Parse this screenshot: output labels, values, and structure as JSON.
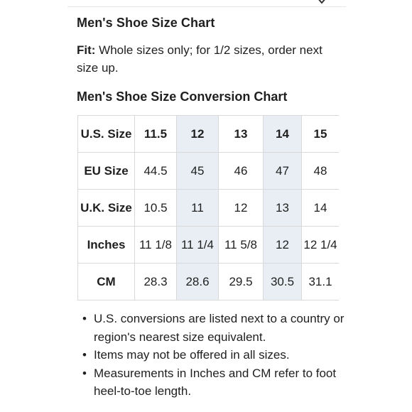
{
  "page": {
    "title": "Men's Shoe Size Chart",
    "fit_label": "Fit:",
    "fit_text": " Whole sizes only; for 1/2 sizes, order next size up.",
    "subtitle": "Men's Shoe Size Conversion Chart"
  },
  "table": {
    "rows": [
      {
        "label": "U.S.  Size",
        "values": [
          "11.5",
          "12",
          "13",
          "14",
          "15"
        ]
      },
      {
        "label": "EU Size",
        "values": [
          "44.5",
          "45",
          "46",
          "47",
          "48"
        ]
      },
      {
        "label": "U.K. Size",
        "values": [
          "10.5",
          "11",
          "12",
          "13",
          "14"
        ]
      },
      {
        "label": "Inches",
        "values": [
          "11 1/8",
          "11 1/4",
          "11 5/8",
          "12",
          "12 1/4"
        ]
      },
      {
        "label": "CM",
        "values": [
          "28.3",
          "28.6",
          "29.5",
          "30.5",
          "31.1"
        ]
      }
    ],
    "highlight_color": "#e8eef3"
  },
  "notes": [
    "U.S. conversions are listed next to a country or region's nearest size equivalent.",
    "Items may not be offered in all sizes.",
    "Measurements in Inches and CM refer to foot heel-to-toe length."
  ]
}
